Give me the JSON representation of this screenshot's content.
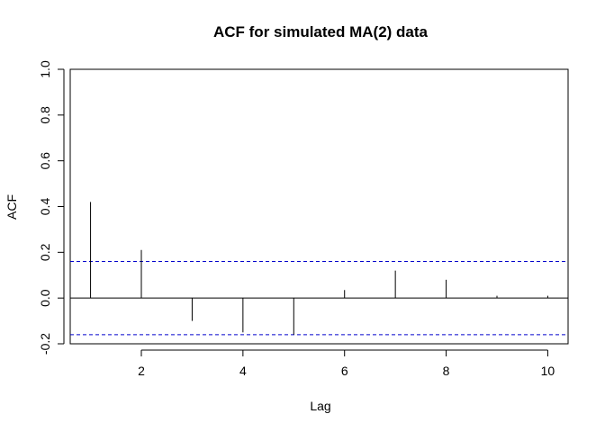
{
  "chart_data": {
    "type": "bar",
    "title": "ACF for simulated MA(2) data",
    "xlabel": "Lag",
    "ylabel": "ACF",
    "x": [
      1,
      2,
      3,
      4,
      5,
      6,
      7,
      8,
      9,
      10
    ],
    "values": [
      0.42,
      0.21,
      -0.1,
      -0.15,
      -0.16,
      0.035,
      0.12,
      0.08,
      0.01,
      0.01
    ],
    "confidence_band": [
      0.16,
      -0.16
    ],
    "xlim": [
      0.6,
      10.4
    ],
    "ylim": [
      -0.2,
      1.0
    ],
    "xticks": [
      "2",
      "4",
      "6",
      "8",
      "10"
    ],
    "yticks": [
      "-0.2",
      "0.0",
      "0.2",
      "0.4",
      "0.6",
      "0.8",
      "1.0"
    ],
    "colors": {
      "spikes": "#000000",
      "band": "#0000cc",
      "zero_line": "#000000"
    },
    "grid": false,
    "legend": "none"
  }
}
